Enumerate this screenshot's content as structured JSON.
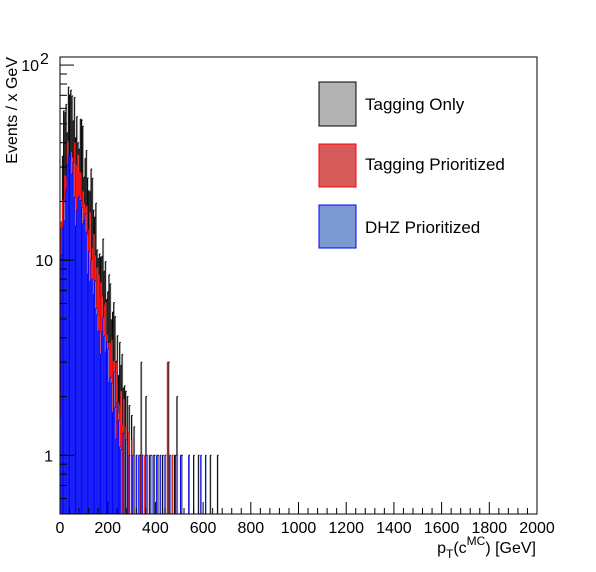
{
  "chart_data": {
    "type": "bar",
    "subtype": "stacked-histogram",
    "title": "",
    "xlabel": {
      "base": "p",
      "sub": "T",
      "mid": "(c",
      "sup": "MC",
      "tail": ") [GeV]"
    },
    "ylabel": "Events / x GeV",
    "xlim": [
      0,
      2000
    ],
    "ylim": [
      0.5,
      110
    ],
    "yscale": "log",
    "bin_width": 5,
    "x_ticks": [
      "0",
      "200",
      "400",
      "600",
      "800",
      "1000",
      "1200",
      "1400",
      "1600",
      "1800",
      "2000"
    ],
    "y_ticks": [
      {
        "value": 1,
        "label": "1"
      },
      {
        "value": 10,
        "label": "10"
      },
      {
        "value": 100,
        "label": "10",
        "sup": "2"
      }
    ],
    "legend_position": "top-right",
    "series": [
      {
        "name": "Tagging Only",
        "fill": "#b2b2b2",
        "line": "#000000",
        "bin_range": [
          0,
          280
        ],
        "anchors": [
          [
            0,
            0.5
          ],
          [
            3,
            4
          ],
          [
            8,
            20
          ],
          [
            15,
            40
          ],
          [
            25,
            55
          ],
          [
            40,
            62
          ],
          [
            60,
            58
          ],
          [
            80,
            48
          ],
          [
            100,
            38
          ],
          [
            120,
            28
          ],
          [
            140,
            20
          ],
          [
            160,
            14
          ],
          [
            180,
            10
          ],
          [
            200,
            7.5
          ],
          [
            220,
            5.5
          ],
          [
            240,
            4
          ],
          [
            260,
            3
          ],
          [
            280,
            2.2
          ]
        ],
        "tail": [
          [
            282,
            2
          ],
          [
            290,
            1.8
          ],
          [
            300,
            1.6
          ],
          [
            310,
            1.4
          ],
          [
            320,
            1
          ],
          [
            335,
            1
          ],
          [
            340,
            3
          ],
          [
            345,
            1
          ],
          [
            360,
            2
          ],
          [
            380,
            1
          ],
          [
            395,
            1
          ],
          [
            410,
            1
          ],
          [
            430,
            1
          ],
          [
            440,
            1
          ],
          [
            455,
            3
          ],
          [
            470,
            1
          ],
          [
            480,
            1
          ],
          [
            490,
            2
          ],
          [
            510,
            1
          ],
          [
            540,
            1
          ],
          [
            560,
            1
          ],
          [
            580,
            1
          ],
          [
            630,
            1
          ],
          [
            660,
            1
          ]
        ]
      },
      {
        "name": "Tagging Prioritized",
        "fill": "#d65c5c",
        "line": "#ff0000",
        "bin_range": [
          0,
          270
        ],
        "anchors": [
          [
            0,
            0.5
          ],
          [
            3,
            3
          ],
          [
            8,
            14
          ],
          [
            15,
            27
          ],
          [
            25,
            35
          ],
          [
            40,
            38
          ],
          [
            60,
            34
          ],
          [
            80,
            27
          ],
          [
            100,
            21
          ],
          [
            120,
            15
          ],
          [
            140,
            11
          ],
          [
            160,
            8
          ],
          [
            180,
            5.5
          ],
          [
            200,
            4
          ],
          [
            220,
            3
          ],
          [
            240,
            2.2
          ],
          [
            260,
            1.7
          ],
          [
            270,
            1.5
          ]
        ],
        "tail": [
          [
            275,
            1.4
          ],
          [
            285,
            1.3
          ],
          [
            300,
            1.2
          ],
          [
            320,
            1
          ],
          [
            340,
            1
          ],
          [
            355,
            1
          ],
          [
            365,
            1
          ],
          [
            420,
            1
          ],
          [
            450,
            3
          ],
          [
            470,
            1
          ],
          [
            490,
            1
          ]
        ]
      },
      {
        "name": "DHZ Prioritized",
        "fill": "#7b99d3",
        "line": "#0000ff",
        "bin_range": [
          0,
          260
        ],
        "anchors": [
          [
            0,
            0.5
          ],
          [
            3,
            2.5
          ],
          [
            8,
            10
          ],
          [
            15,
            20
          ],
          [
            25,
            26
          ],
          [
            40,
            28
          ],
          [
            60,
            25
          ],
          [
            80,
            20
          ],
          [
            100,
            15
          ],
          [
            120,
            11
          ],
          [
            140,
            8
          ],
          [
            160,
            5.5
          ],
          [
            180,
            4
          ],
          [
            200,
            3
          ],
          [
            220,
            2.3
          ],
          [
            240,
            1.8
          ],
          [
            260,
            1.4
          ]
        ],
        "tail": [
          [
            265,
            1.3
          ],
          [
            275,
            1.2
          ],
          [
            290,
            1
          ],
          [
            305,
            1
          ],
          [
            320,
            1
          ],
          [
            330,
            1
          ],
          [
            345,
            1
          ],
          [
            360,
            1
          ],
          [
            375,
            1
          ],
          [
            390,
            1
          ],
          [
            405,
            1
          ],
          [
            420,
            1
          ],
          [
            440,
            1
          ],
          [
            460,
            1
          ],
          [
            485,
            1
          ],
          [
            505,
            1
          ],
          [
            540,
            1
          ],
          [
            590,
            1
          ],
          [
            610,
            1
          ]
        ]
      }
    ]
  }
}
